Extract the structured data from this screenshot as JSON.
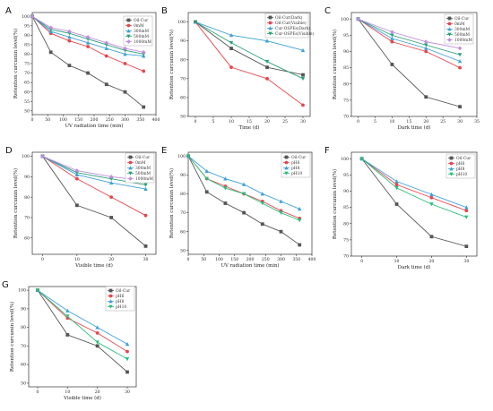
{
  "colors": {
    "Oil-Cur": "#555555",
    "0mM": "#e8454c",
    "300mM": "#3da0d8",
    "500mM": "#27a07a",
    "1000mM": "#c28be0",
    "pH6": "#e8454c",
    "pH8": "#3da0d8",
    "pH10": "#27c07a"
  },
  "chart_data": [
    {
      "panel": "A",
      "type": "line",
      "xlabel": "UV radiation time (min)",
      "ylabel": "Retention curcumin level(%)",
      "xlim": [
        0,
        400
      ],
      "ylim": [
        48,
        102
      ],
      "xticks": [
        0,
        50,
        100,
        150,
        200,
        250,
        300,
        350,
        400
      ],
      "yticks": [
        50,
        55,
        60,
        65,
        70,
        75,
        80,
        85,
        90,
        95,
        100
      ],
      "legend_position": "top-right",
      "x": [
        0,
        60,
        120,
        180,
        240,
        300,
        360
      ],
      "series": [
        {
          "name": "Oil-Cur",
          "values": [
            100,
            81,
            74,
            70,
            64,
            60,
            52
          ]
        },
        {
          "name": "0mM",
          "values": [
            100,
            91,
            87,
            84,
            79,
            75,
            71
          ]
        },
        {
          "name": "300mM",
          "values": [
            100,
            92,
            89,
            86,
            83,
            80,
            79
          ]
        },
        {
          "name": "500mM",
          "values": [
            100,
            93,
            91,
            88,
            85,
            82,
            80
          ]
        },
        {
          "name": "1000mM",
          "values": [
            100,
            94,
            92,
            89,
            86,
            83,
            81
          ]
        }
      ]
    },
    {
      "panel": "B",
      "type": "line",
      "xlabel": "Time (d)",
      "ylabel": "Retention curcumin level(%)",
      "xlim": [
        -2,
        32
      ],
      "ylim": [
        50,
        105
      ],
      "xticks": [
        0,
        5,
        10,
        15,
        20,
        25,
        30
      ],
      "yticks": [
        50,
        60,
        70,
        80,
        90,
        100
      ],
      "legend_position": "top-right",
      "x": [
        0,
        10,
        20,
        30
      ],
      "series": [
        {
          "name": "Oil-Cur(Dark)",
          "values": [
            100,
            86,
            76,
            72
          ]
        },
        {
          "name": "Oil-Cur(Visible)",
          "values": [
            100,
            76,
            70,
            56
          ]
        },
        {
          "name": "Cur-OSPEs(Dark)",
          "values": [
            100,
            93,
            90,
            85
          ]
        },
        {
          "name": "Cur-OSPEs(Visible)",
          "values": [
            100,
            89,
            79,
            70
          ]
        }
      ]
    },
    {
      "panel": "C",
      "type": "line",
      "xlabel": "Dark time (d)",
      "ylabel": "Retention curcumin level(%)",
      "xlim": [
        -2,
        35
      ],
      "ylim": [
        70,
        102
      ],
      "xticks": [
        0,
        5,
        10,
        15,
        20,
        25,
        30,
        35
      ],
      "yticks": [
        70,
        75,
        80,
        85,
        90,
        95,
        100
      ],
      "legend_position": "top-right",
      "x": [
        0,
        10,
        20,
        30
      ],
      "series": [
        {
          "name": "Oil-Cur",
          "values": [
            100,
            86,
            76,
            73
          ]
        },
        {
          "name": "0mM",
          "values": [
            100,
            93,
            90,
            85
          ]
        },
        {
          "name": "300mM",
          "values": [
            100,
            94,
            91,
            87
          ]
        },
        {
          "name": "500mM",
          "values": [
            100,
            95,
            92,
            89
          ]
        },
        {
          "name": "1000mM",
          "values": [
            100,
            96,
            93,
            91
          ]
        }
      ]
    },
    {
      "panel": "D",
      "type": "line",
      "xlabel": "Visible time (d)",
      "ylabel": "Retention curcumin level(%)",
      "xlim": [
        -3,
        33
      ],
      "ylim": [
        52,
        102
      ],
      "xticks": [
        0,
        10,
        20,
        30
      ],
      "yticks": [
        60,
        70,
        80,
        90,
        100
      ],
      "legend_position": "top-right",
      "x": [
        0,
        10,
        20,
        30
      ],
      "series": [
        {
          "name": "Oil-Cur",
          "values": [
            100,
            76,
            70,
            56
          ]
        },
        {
          "name": "0mM",
          "values": [
            100,
            89,
            80,
            71
          ]
        },
        {
          "name": "300mM",
          "values": [
            100,
            91,
            87,
            84
          ]
        },
        {
          "name": "500mM",
          "values": [
            100,
            92,
            89,
            86
          ]
        },
        {
          "name": "1000mM",
          "values": [
            100,
            93,
            90,
            88
          ]
        }
      ]
    },
    {
      "panel": "E",
      "type": "line",
      "xlabel": "UV radiation time (min)",
      "ylabel": "Retention curcumin level(%)",
      "xlim": [
        0,
        400
      ],
      "ylim": [
        48,
        102
      ],
      "xticks": [
        0,
        50,
        100,
        150,
        200,
        250,
        300,
        350,
        400
      ],
      "yticks": [
        50,
        60,
        70,
        80,
        90,
        100
      ],
      "legend_position": "top-right",
      "x": [
        0,
        60,
        120,
        180,
        240,
        300,
        360
      ],
      "series": [
        {
          "name": "Oil-Cur",
          "values": [
            100,
            81,
            75,
            70,
            64,
            60,
            53
          ]
        },
        {
          "name": "pH6",
          "values": [
            100,
            88,
            84,
            80,
            76,
            71,
            67
          ]
        },
        {
          "name": "pH8",
          "values": [
            100,
            92,
            88,
            85,
            80,
            76,
            72
          ]
        },
        {
          "name": "pH10",
          "values": [
            100,
            88,
            83,
            80,
            75,
            70,
            66
          ]
        }
      ]
    },
    {
      "panel": "F",
      "type": "line",
      "xlabel": "Dark time (d)",
      "ylabel": "Retention curcumin level(%)",
      "xlim": [
        -3,
        33
      ],
      "ylim": [
        70,
        102
      ],
      "xticks": [
        0,
        10,
        20,
        30
      ],
      "yticks": [
        70,
        75,
        80,
        85,
        90,
        95,
        100
      ],
      "legend_position": "top-right",
      "x": [
        0,
        10,
        20,
        30
      ],
      "series": [
        {
          "name": "Oil-Cur",
          "values": [
            100,
            86,
            76,
            73
          ]
        },
        {
          "name": "pH6",
          "values": [
            100,
            92,
            88,
            84
          ]
        },
        {
          "name": "pH8",
          "values": [
            100,
            93,
            89,
            85
          ]
        },
        {
          "name": "pH10",
          "values": [
            100,
            91,
            86,
            82
          ]
        }
      ]
    },
    {
      "panel": "G",
      "type": "line",
      "xlabel": "Visible time (d)",
      "ylabel": "Retention curcumin level(%)",
      "xlim": [
        -3,
        33
      ],
      "ylim": [
        48,
        102
      ],
      "xticks": [
        0,
        10,
        20,
        30
      ],
      "yticks": [
        50,
        60,
        70,
        80,
        90,
        100
      ],
      "legend_position": "top-right",
      "x": [
        0,
        10,
        20,
        30
      ],
      "series": [
        {
          "name": "Oil-Cur",
          "values": [
            100,
            76,
            70,
            56
          ]
        },
        {
          "name": "pH6",
          "values": [
            100,
            85,
            77,
            67
          ]
        },
        {
          "name": "pH8",
          "values": [
            100,
            89,
            80,
            71
          ]
        },
        {
          "name": "pH10",
          "values": [
            100,
            86,
            72,
            63
          ]
        }
      ]
    }
  ]
}
